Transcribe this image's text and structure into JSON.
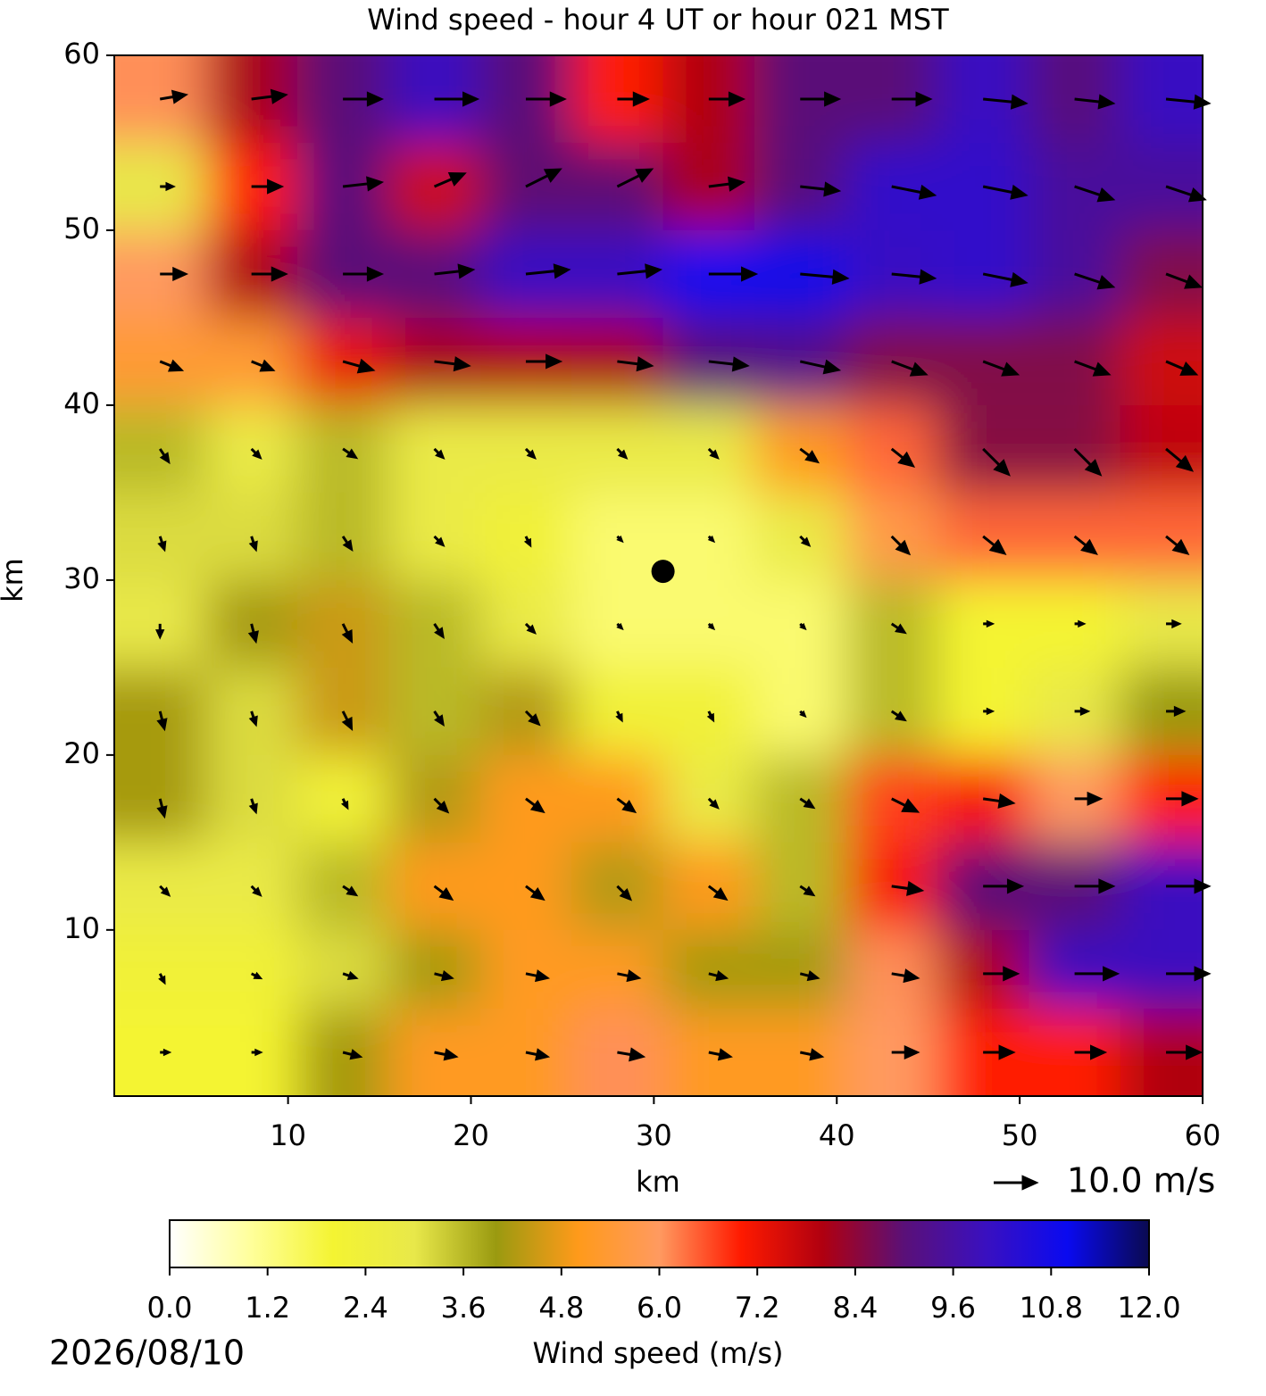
{
  "chart_data": {
    "type": "wind_field",
    "title": "Wind speed - hour 4 UT or hour 021 MST",
    "x_label": "km",
    "y_label": "km",
    "xlim": [
      0.5,
      60
    ],
    "ylim": [
      0.5,
      60
    ],
    "xticks": [
      10,
      20,
      30,
      40,
      50,
      60
    ],
    "yticks": [
      10,
      20,
      30,
      40,
      50,
      60
    ],
    "x": [
      3,
      8,
      13,
      18,
      23,
      28,
      33,
      38,
      43,
      48,
      53,
      58
    ],
    "y": [
      57.5,
      52.5,
      47.5,
      42.5,
      37.5,
      32.5,
      27.5,
      22.5,
      17.5,
      12.5,
      7.5,
      3
    ],
    "u": [
      [
        6,
        8,
        9,
        10,
        9,
        7,
        8,
        9,
        9,
        10,
        9,
        10
      ],
      [
        3,
        7,
        9,
        7,
        8,
        8,
        8,
        9,
        10,
        10,
        9,
        9
      ],
      [
        6,
        8,
        9,
        9,
        10,
        10,
        11,
        11,
        10,
        10,
        9,
        8
      ],
      [
        5,
        5,
        7,
        8,
        8,
        8,
        9,
        9,
        8,
        8,
        8,
        7
      ],
      [
        2,
        2,
        3,
        2,
        2,
        2,
        2,
        4,
        5,
        6,
        6,
        6
      ],
      [
        1,
        1,
        2,
        2,
        1,
        1,
        1,
        2,
        4,
        5,
        5,
        5
      ],
      [
        0,
        1,
        2,
        2,
        2,
        1,
        1,
        1,
        3,
        2,
        2,
        3
      ],
      [
        1,
        1,
        2,
        2,
        3,
        1,
        1,
        1,
        3,
        2,
        3,
        4
      ],
      [
        1,
        1,
        1,
        3,
        4,
        4,
        2,
        3,
        6,
        7,
        6,
        7
      ],
      [
        2,
        2,
        3,
        4,
        4,
        3,
        4,
        3,
        7,
        9,
        9,
        10
      ],
      [
        1,
        2,
        3,
        4,
        5,
        5,
        4,
        4,
        6,
        8,
        10,
        10
      ],
      [
        2,
        2,
        4,
        5,
        5,
        6,
        5,
        5,
        6,
        7,
        7,
        8
      ]
    ],
    "v": [
      [
        1,
        1,
        0,
        0,
        0,
        0,
        0,
        0,
        0,
        -1,
        -1,
        -1
      ],
      [
        0,
        0,
        1,
        3,
        4,
        4,
        1,
        -1,
        -2,
        -2,
        -3,
        -3
      ],
      [
        0,
        0,
        0,
        1,
        1,
        1,
        0,
        -1,
        -1,
        -2,
        -3,
        -3
      ],
      [
        -2,
        -2,
        -2,
        -1,
        0,
        -1,
        -1,
        -2,
        -3,
        -3,
        -3,
        -3
      ],
      [
        -3,
        -2,
        -2,
        -2,
        -2,
        -2,
        -2,
        -3,
        -4,
        -6,
        -6,
        -5
      ],
      [
        -3,
        -3,
        -3,
        -2,
        -2,
        -1,
        -1,
        -2,
        -4,
        -4,
        -4,
        -4
      ],
      [
        -3,
        -4,
        -4,
        -3,
        -2,
        -1,
        -1,
        -1,
        -2,
        0,
        0,
        0
      ],
      [
        -4,
        -3,
        -4,
        -3,
        -3,
        -2,
        -2,
        -1,
        -2,
        0,
        0,
        0
      ],
      [
        -4,
        -3,
        -2,
        -3,
        -3,
        -3,
        -2,
        -2,
        -3,
        -1,
        0,
        0
      ],
      [
        -2,
        -2,
        -2,
        -3,
        -3,
        -3,
        -3,
        -2,
        -1,
        0,
        0,
        0
      ],
      [
        -2,
        -1,
        -1,
        -1,
        -1,
        -1,
        -1,
        -1,
        -1,
        0,
        0,
        0
      ],
      [
        0,
        0,
        -1,
        -1,
        -1,
        -1,
        -1,
        -1,
        0,
        0,
        0,
        0
      ]
    ],
    "marker": {
      "x": 30.5,
      "y": 30.5
    },
    "quiver_key": {
      "value": 10,
      "label": "10.0 m/s"
    },
    "colorbar_label": "Wind speed (m/s)",
    "clim": [
      0,
      12
    ],
    "colormap": [
      "#ffffff",
      "#ffff9a",
      "#f4f432",
      "#e8e84a",
      "#9a9a10",
      "#ff9a1a",
      "#ff9a60",
      "#ff1a00",
      "#b00010",
      "#5a1078",
      "#3a10c0",
      "#0a0af0",
      "#0a0a50"
    ],
    "colorbar_ticks": [
      {
        "value": 0,
        "label": "0.0"
      },
      1.2,
      2.4,
      3.6,
      4.8,
      {
        "value": 6,
        "label": "6.0"
      },
      7.2,
      8.4,
      9.6,
      10.8,
      {
        "value": 12,
        "label": "12.0"
      }
    ],
    "date": "2026/08/10"
  }
}
